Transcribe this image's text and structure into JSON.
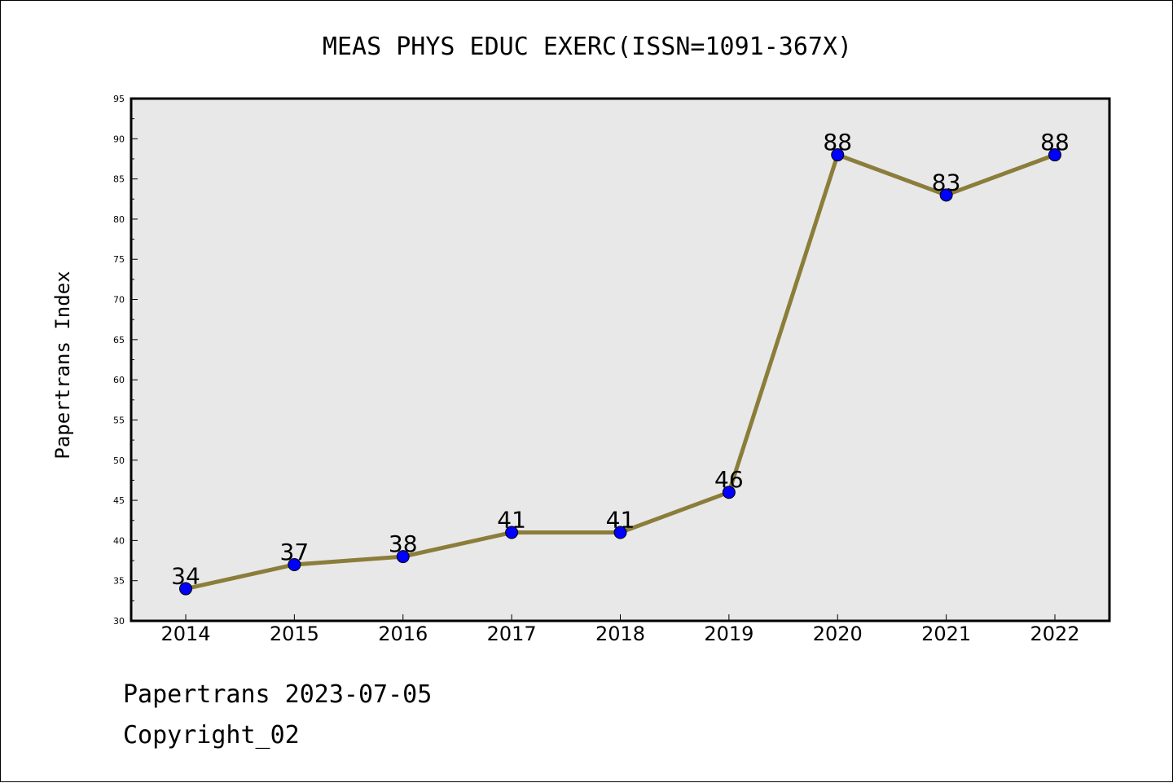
{
  "chart_data": {
    "type": "line",
    "title": "MEAS PHYS EDUC EXERC(ISSN=1091-367X)",
    "xlabel": "",
    "ylabel": "Papertrans Index",
    "categories": [
      "2014",
      "2015",
      "2016",
      "2017",
      "2018",
      "2019",
      "2020",
      "2021",
      "2022"
    ],
    "values": [
      34,
      37,
      38,
      41,
      41,
      46,
      88,
      83,
      88
    ],
    "data_labels": [
      "34",
      "37",
      "38",
      "41",
      "41",
      "46",
      "88",
      "83",
      "88"
    ],
    "ylim": [
      30,
      95
    ],
    "yticks": [
      "30",
      "35",
      "40",
      "45",
      "50",
      "55",
      "60",
      "65",
      "70",
      "75",
      "80",
      "85",
      "90",
      "95"
    ],
    "grid": false,
    "colors": {
      "line": "#8B7D3A",
      "marker": "#0000FF",
      "plot_background": "#E8E8E8"
    }
  },
  "footer": {
    "line1": "Papertrans 2023-07-05",
    "line2": "Copyright_02"
  }
}
